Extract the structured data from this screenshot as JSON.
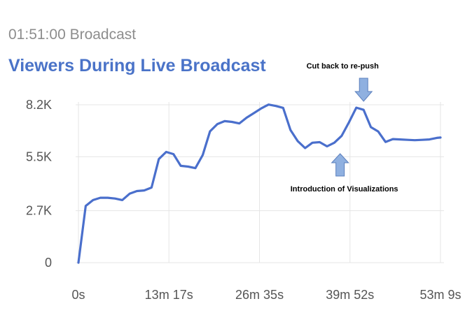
{
  "header": {
    "duration_label": "01:51:00 Broadcast",
    "title": "Viewers During Live Broadcast"
  },
  "colors": {
    "line": "#4a6fcc",
    "arrow_fill": "#8fb0e0",
    "arrow_stroke": "#5b7fbd",
    "grid": "#e5e5e5",
    "title": "#4a73c8"
  },
  "chart_data": {
    "type": "line",
    "title": "Viewers During Live Broadcast",
    "xlabel": "",
    "ylabel": "",
    "xlim": [
      0,
      3220
    ],
    "ylim": [
      0,
      8200
    ],
    "grid": true,
    "x_ticks": [
      {
        "value": 0,
        "label": "0s"
      },
      {
        "value": 797,
        "label": "13m 17s"
      },
      {
        "value": 1595,
        "label": "26m 35s"
      },
      {
        "value": 2392,
        "label": "39m 52s"
      },
      {
        "value": 3189,
        "label": "53m 9s"
      }
    ],
    "y_ticks": [
      {
        "value": 0,
        "label": "0"
      },
      {
        "value": 2700,
        "label": "2.7K"
      },
      {
        "value": 5500,
        "label": "5.5K"
      },
      {
        "value": 8200,
        "label": "8.2K"
      }
    ],
    "series": [
      {
        "x": [
          0,
          64,
          129,
          193,
          258,
          322,
          386,
          451,
          515,
          579,
          644,
          708,
          773,
          837,
          901,
          966,
          1030,
          1095,
          1159,
          1224,
          1288,
          1352,
          1417,
          1481,
          1546,
          1610,
          1675,
          1739,
          1803,
          1868,
          1932,
          1997,
          2061,
          2125,
          2190,
          2254,
          2319,
          2383,
          2448,
          2512,
          2576,
          2641,
          2705,
          2770,
          2834,
          2899,
          2963,
          3028,
          3092,
          3157,
          3189
        ],
        "values": [
          0,
          2950,
          3250,
          3370,
          3370,
          3330,
          3250,
          3580,
          3720,
          3750,
          3900,
          5380,
          5750,
          5640,
          5030,
          4990,
          4910,
          5590,
          6820,
          7200,
          7350,
          7310,
          7230,
          7530,
          7770,
          8010,
          8210,
          8140,
          8040,
          6890,
          6310,
          5950,
          6230,
          6260,
          6040,
          6230,
          6590,
          7290,
          8050,
          7940,
          7040,
          6810,
          6270,
          6420,
          6400,
          6380,
          6360,
          6380,
          6400,
          6480,
          6500
        ]
      }
    ],
    "annotations": [
      {
        "text": "Cut back to re-push",
        "arrow": "down",
        "x": 2512
      },
      {
        "text": "Introduction of Visualizations",
        "arrow": "up",
        "x": 2305
      }
    ]
  }
}
